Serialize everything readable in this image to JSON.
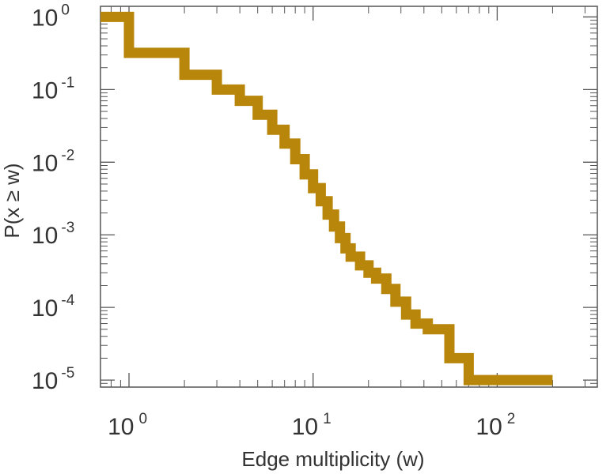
{
  "chart_data": {
    "type": "line",
    "step": true,
    "title": "",
    "xlabel": "Edge multiplicity (w)",
    "ylabel": "P(x ≥ w)",
    "x_scale": "log",
    "y_scale": "log",
    "xlim": [
      0.7,
      350
    ],
    "ylim": [
      8e-06,
      1.4
    ],
    "x_ticks": [
      {
        "base": "10",
        "exp": "0",
        "value": 1
      },
      {
        "base": "10",
        "exp": "1",
        "value": 10
      },
      {
        "base": "10",
        "exp": "2",
        "value": 100
      }
    ],
    "y_ticks": [
      {
        "base": "10",
        "exp": "0",
        "value": 1
      },
      {
        "base": "10",
        "exp": "-1",
        "value": 0.1
      },
      {
        "base": "10",
        "exp": "-2",
        "value": 0.01
      },
      {
        "base": "10",
        "exp": "-3",
        "value": 0.001
      },
      {
        "base": "10",
        "exp": "-4",
        "value": 0.0001
      },
      {
        "base": "10",
        "exp": "-5",
        "value": 1e-05
      }
    ],
    "grid": false,
    "series": [
      {
        "color": "#b8860b",
        "x": [
          0.7,
          1,
          2,
          3,
          4,
          5,
          6,
          7,
          8,
          9,
          10,
          11,
          12,
          13,
          14,
          15,
          16,
          18,
          20,
          22,
          25,
          28,
          32,
          36,
          42,
          55,
          70,
          200
        ],
        "y": [
          1.0,
          0.32,
          0.16,
          0.1,
          0.07,
          0.045,
          0.028,
          0.018,
          0.011,
          0.0068,
          0.0044,
          0.0029,
          0.0019,
          0.0013,
          0.0009,
          0.00065,
          0.0005,
          0.00038,
          0.0003,
          0.00025,
          0.00018,
          0.00012,
          8e-05,
          6e-05,
          5e-05,
          2e-05,
          1e-05,
          1e-05
        ]
      }
    ]
  }
}
